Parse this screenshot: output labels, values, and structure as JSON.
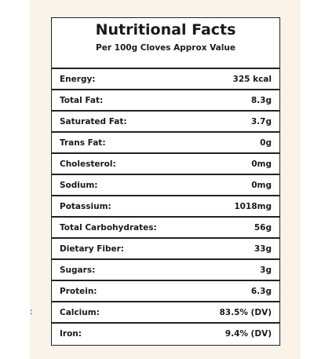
{
  "header": {
    "title": "Nutritional Facts",
    "subtitle": "Per 100g Cloves Approx Value"
  },
  "table": {
    "rows": [
      [
        "Energy:",
        "325 kcal"
      ],
      [
        "Total Fat:",
        "8.3g"
      ],
      [
        "Saturated Fat:",
        "3.7g"
      ],
      [
        "Trans Fat:",
        "0g"
      ],
      [
        "Cholesterol:",
        "0mg"
      ],
      [
        "Sodium:",
        "0mg"
      ],
      [
        "Potassium:",
        "1018mg"
      ],
      [
        "Total Carbohydrates:",
        "56g"
      ],
      [
        "Dietary Fiber:",
        "33g"
      ],
      [
        "Sugars:",
        "3g"
      ],
      [
        "Protein:",
        "6.3g"
      ],
      [
        "Calcium:",
        "83.5% (DV)"
      ],
      [
        "Iron:",
        "9.4% (DV)"
      ]
    ]
  },
  "margin_note": ":"
}
